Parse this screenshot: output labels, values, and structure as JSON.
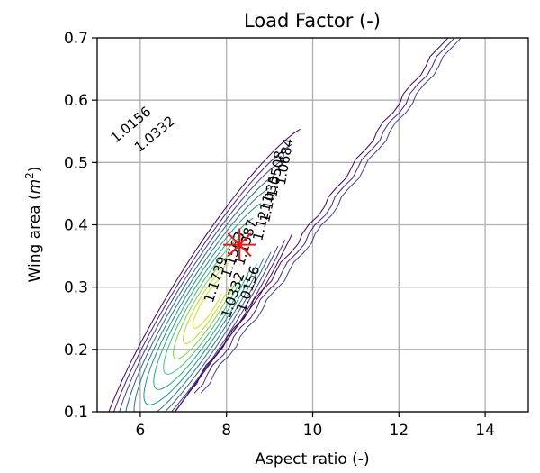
{
  "chart_data": {
    "type": "contour",
    "title": "Load Factor (-)",
    "xlabel": "Aspect ratio (-)",
    "ylabel_text": "Wing area (",
    "ylabel_var": "m",
    "ylabel_exp": "2",
    "ylabel_close": ")",
    "xlim": [
      5,
      15
    ],
    "ylim": [
      0.1,
      0.7
    ],
    "xticks": [
      6,
      8,
      10,
      12,
      14
    ],
    "yticks": [
      0.1,
      0.2,
      0.3,
      0.4,
      0.5,
      0.6,
      0.7
    ],
    "grid": true,
    "colormap": "viridis",
    "colors": {
      "outer": "#440154",
      "mid": "#21918c",
      "inner": "#cde11d",
      "marker": "#e8191b",
      "grid": "#b0b0b0"
    },
    "contour_labels": [
      {
        "text": "1.0156",
        "x": 5.85,
        "y": 0.555,
        "angle": -40
      },
      {
        "text": "1.0332",
        "x": 6.4,
        "y": 0.54,
        "angle": -40
      },
      {
        "text": "1.0684",
        "x": 9.45,
        "y": 0.5,
        "angle": -80
      },
      {
        "text": "1.0508",
        "x": 9.25,
        "y": 0.48,
        "angle": -80
      },
      {
        "text": "1.1035",
        "x": 9.1,
        "y": 0.44,
        "angle": -78
      },
      {
        "text": "1.1211",
        "x": 8.95,
        "y": 0.41,
        "angle": -76
      },
      {
        "text": "1.1387",
        "x": 8.55,
        "y": 0.37,
        "angle": -74
      },
      {
        "text": "1.1563",
        "x": 8.25,
        "y": 0.35,
        "angle": -72
      },
      {
        "text": "1.1739",
        "x": 7.85,
        "y": 0.31,
        "angle": -72
      },
      {
        "text": "1.0332",
        "x": 8.25,
        "y": 0.285,
        "angle": -72
      },
      {
        "text": "1.0156",
        "x": 8.6,
        "y": 0.295,
        "angle": -72
      }
    ],
    "optimum": {
      "x": 8.3,
      "y": 0.368
    }
  }
}
